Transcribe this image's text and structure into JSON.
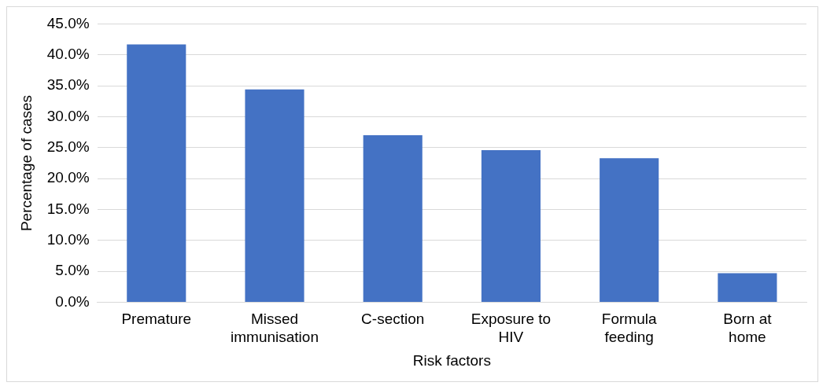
{
  "chart_data": {
    "type": "bar",
    "xlabel": "Risk factors",
    "ylabel": "Percentage of cases",
    "categories": [
      "Premature",
      "Missed immunisation",
      "C-section",
      "Exposure to HIV",
      "Formula feeding",
      "Born at home"
    ],
    "values": [
      41.7,
      34.4,
      27.0,
      24.6,
      23.3,
      4.7
    ],
    "color": "#4472c4",
    "ylim": [
      0,
      45
    ],
    "yticks": [
      {
        "value": 0,
        "label": "0.0%"
      },
      {
        "value": 5,
        "label": "5.0%"
      },
      {
        "value": 10,
        "label": "10.0%"
      },
      {
        "value": 15,
        "label": "15.0%"
      },
      {
        "value": 20,
        "label": "20.0%"
      },
      {
        "value": 25,
        "label": "25.0%"
      },
      {
        "value": 30,
        "label": "30.0%"
      },
      {
        "value": 35,
        "label": "35.0%"
      },
      {
        "value": 40,
        "label": "40.0%"
      },
      {
        "value": 45,
        "label": "45.0%"
      }
    ],
    "grid": "y",
    "legend": false
  }
}
